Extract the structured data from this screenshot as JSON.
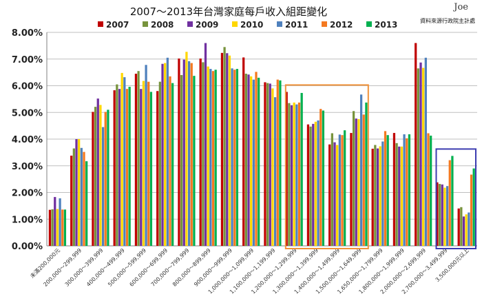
{
  "chart_data": {
    "type": "bar",
    "title": "2007～2013年台灣家庭每戶收入組距變化",
    "xlabel": "",
    "ylabel": "",
    "ylim": [
      0,
      8
    ],
    "y_ticks": [
      "0.00%",
      "1.00%",
      "2.00%",
      "3.00%",
      "4.00%",
      "5.00%",
      "6.00%",
      "7.00%",
      "8.00%"
    ],
    "grid": "horizontal",
    "legend_position": "top",
    "categories": [
      "未滿200,000元",
      "200,000～299,999",
      "300,000～399,999",
      "400,000～499,999",
      "500,000～599,999",
      "600,000～699,999",
      "700,000～799,999",
      "800,000～899,999",
      "900,000～999,999",
      "1,000,000～1,099,999",
      "1,100,000～1,199,999",
      "1,200,000～1,299,999",
      "1,300,000～1,399,999",
      "1,400,000～1,499,999",
      "1,500,000～1,649,999",
      "1,650,000～1,799,999",
      "1,800,000～1,999,999",
      "2,000,000～2,699,999",
      "2,700,000～3,499,999",
      "3,500,000元以上"
    ],
    "series": [
      {
        "name": "2007",
        "color": "#c00000",
        "values": [
          1.35,
          3.38,
          5.02,
          5.83,
          6.45,
          5.8,
          7.02,
          7.02,
          7.23,
          7.06,
          6.13,
          5.77,
          4.55,
          3.8,
          4.23,
          3.64,
          4.23,
          7.6,
          2.38,
          1.4
        ]
      },
      {
        "name": "2008",
        "color": "#77933c",
        "values": [
          1.37,
          3.65,
          5.21,
          6.05,
          6.55,
          6.15,
          6.4,
          6.88,
          7.45,
          6.45,
          6.1,
          5.35,
          4.47,
          4.22,
          5.05,
          3.78,
          3.85,
          6.65,
          2.32,
          1.45
        ]
      },
      {
        "name": "2009",
        "color": "#7030a0",
        "values": [
          1.83,
          4.0,
          5.52,
          5.88,
          5.88,
          6.82,
          6.98,
          7.6,
          7.22,
          6.42,
          6.08,
          5.27,
          4.57,
          3.88,
          4.77,
          3.65,
          3.72,
          6.87,
          2.3,
          1.1
        ]
      },
      {
        "name": "2010",
        "color": "#ffd700",
        "values": [
          1.38,
          4.0,
          5.28,
          6.48,
          6.18,
          6.85,
          7.27,
          6.72,
          7.13,
          6.35,
          5.9,
          5.37,
          4.65,
          3.78,
          4.75,
          3.73,
          3.72,
          6.67,
          2.18,
          1.18
        ]
      },
      {
        "name": "2011",
        "color": "#4f81bd",
        "values": [
          1.78,
          3.67,
          4.45,
          6.32,
          6.78,
          7.05,
          6.92,
          6.63,
          6.65,
          6.23,
          5.57,
          5.3,
          4.7,
          4.17,
          5.67,
          3.91,
          4.18,
          7.05,
          2.24,
          1.25
        ]
      },
      {
        "name": "2012",
        "color": "#f47920",
        "values": [
          1.36,
          3.52,
          5.02,
          5.88,
          6.15,
          6.35,
          6.85,
          6.55,
          6.6,
          6.52,
          6.23,
          5.37,
          5.13,
          4.15,
          4.92,
          4.3,
          4.03,
          4.22,
          3.21,
          2.67
        ]
      },
      {
        "name": "2013",
        "color": "#00b050",
        "values": [
          1.36,
          3.17,
          5.1,
          5.96,
          5.77,
          6.1,
          6.37,
          6.6,
          6.63,
          6.3,
          6.2,
          5.73,
          5.07,
          4.33,
          5.37,
          4.15,
          4.18,
          4.13,
          3.37,
          2.9
        ]
      }
    ],
    "annotations": [
      {
        "shape": "rectangle",
        "color": "#f0923a",
        "encloses": [
          "1,200,000～1,299,999",
          "1,500,000～1,649,999"
        ]
      },
      {
        "shape": "rectangle",
        "color": "#3b3bb0",
        "encloses": [
          "2,700,000～3,499,999",
          "3,500,000元以上"
        ]
      }
    ],
    "signature": "Joe",
    "source_note": "資料來源行政院主計處"
  }
}
